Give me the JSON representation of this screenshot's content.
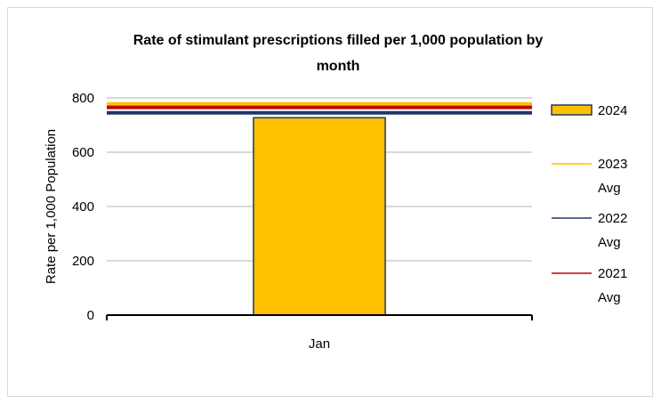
{
  "chart_data": {
    "type": "bar",
    "title_line1": "Rate of stimulant prescriptions filled per 1,000 population by",
    "title_line2": "month",
    "ylabel": "Rate per 1,000 Population",
    "xlabel": "",
    "categories": [
      "Jan"
    ],
    "ylim": [
      0,
      800
    ],
    "yticks": [
      0,
      200,
      400,
      600,
      800
    ],
    "grid": true,
    "legend_position": "right",
    "series": [
      {
        "name": "2024",
        "kind": "bar",
        "values": [
          727
        ],
        "color": "#FFC000",
        "edge": "#1F3864"
      }
    ],
    "reference_lines": [
      {
        "name_line1": "2023",
        "name_line2": "Avg",
        "value": 778,
        "color": "#FFC000"
      },
      {
        "name_line1": "2022",
        "name_line2": "Avg",
        "value": 745,
        "color": "#203864"
      },
      {
        "name_line1": "2021",
        "name_line2": "Avg",
        "value": 765,
        "color": "#C00000"
      }
    ]
  }
}
